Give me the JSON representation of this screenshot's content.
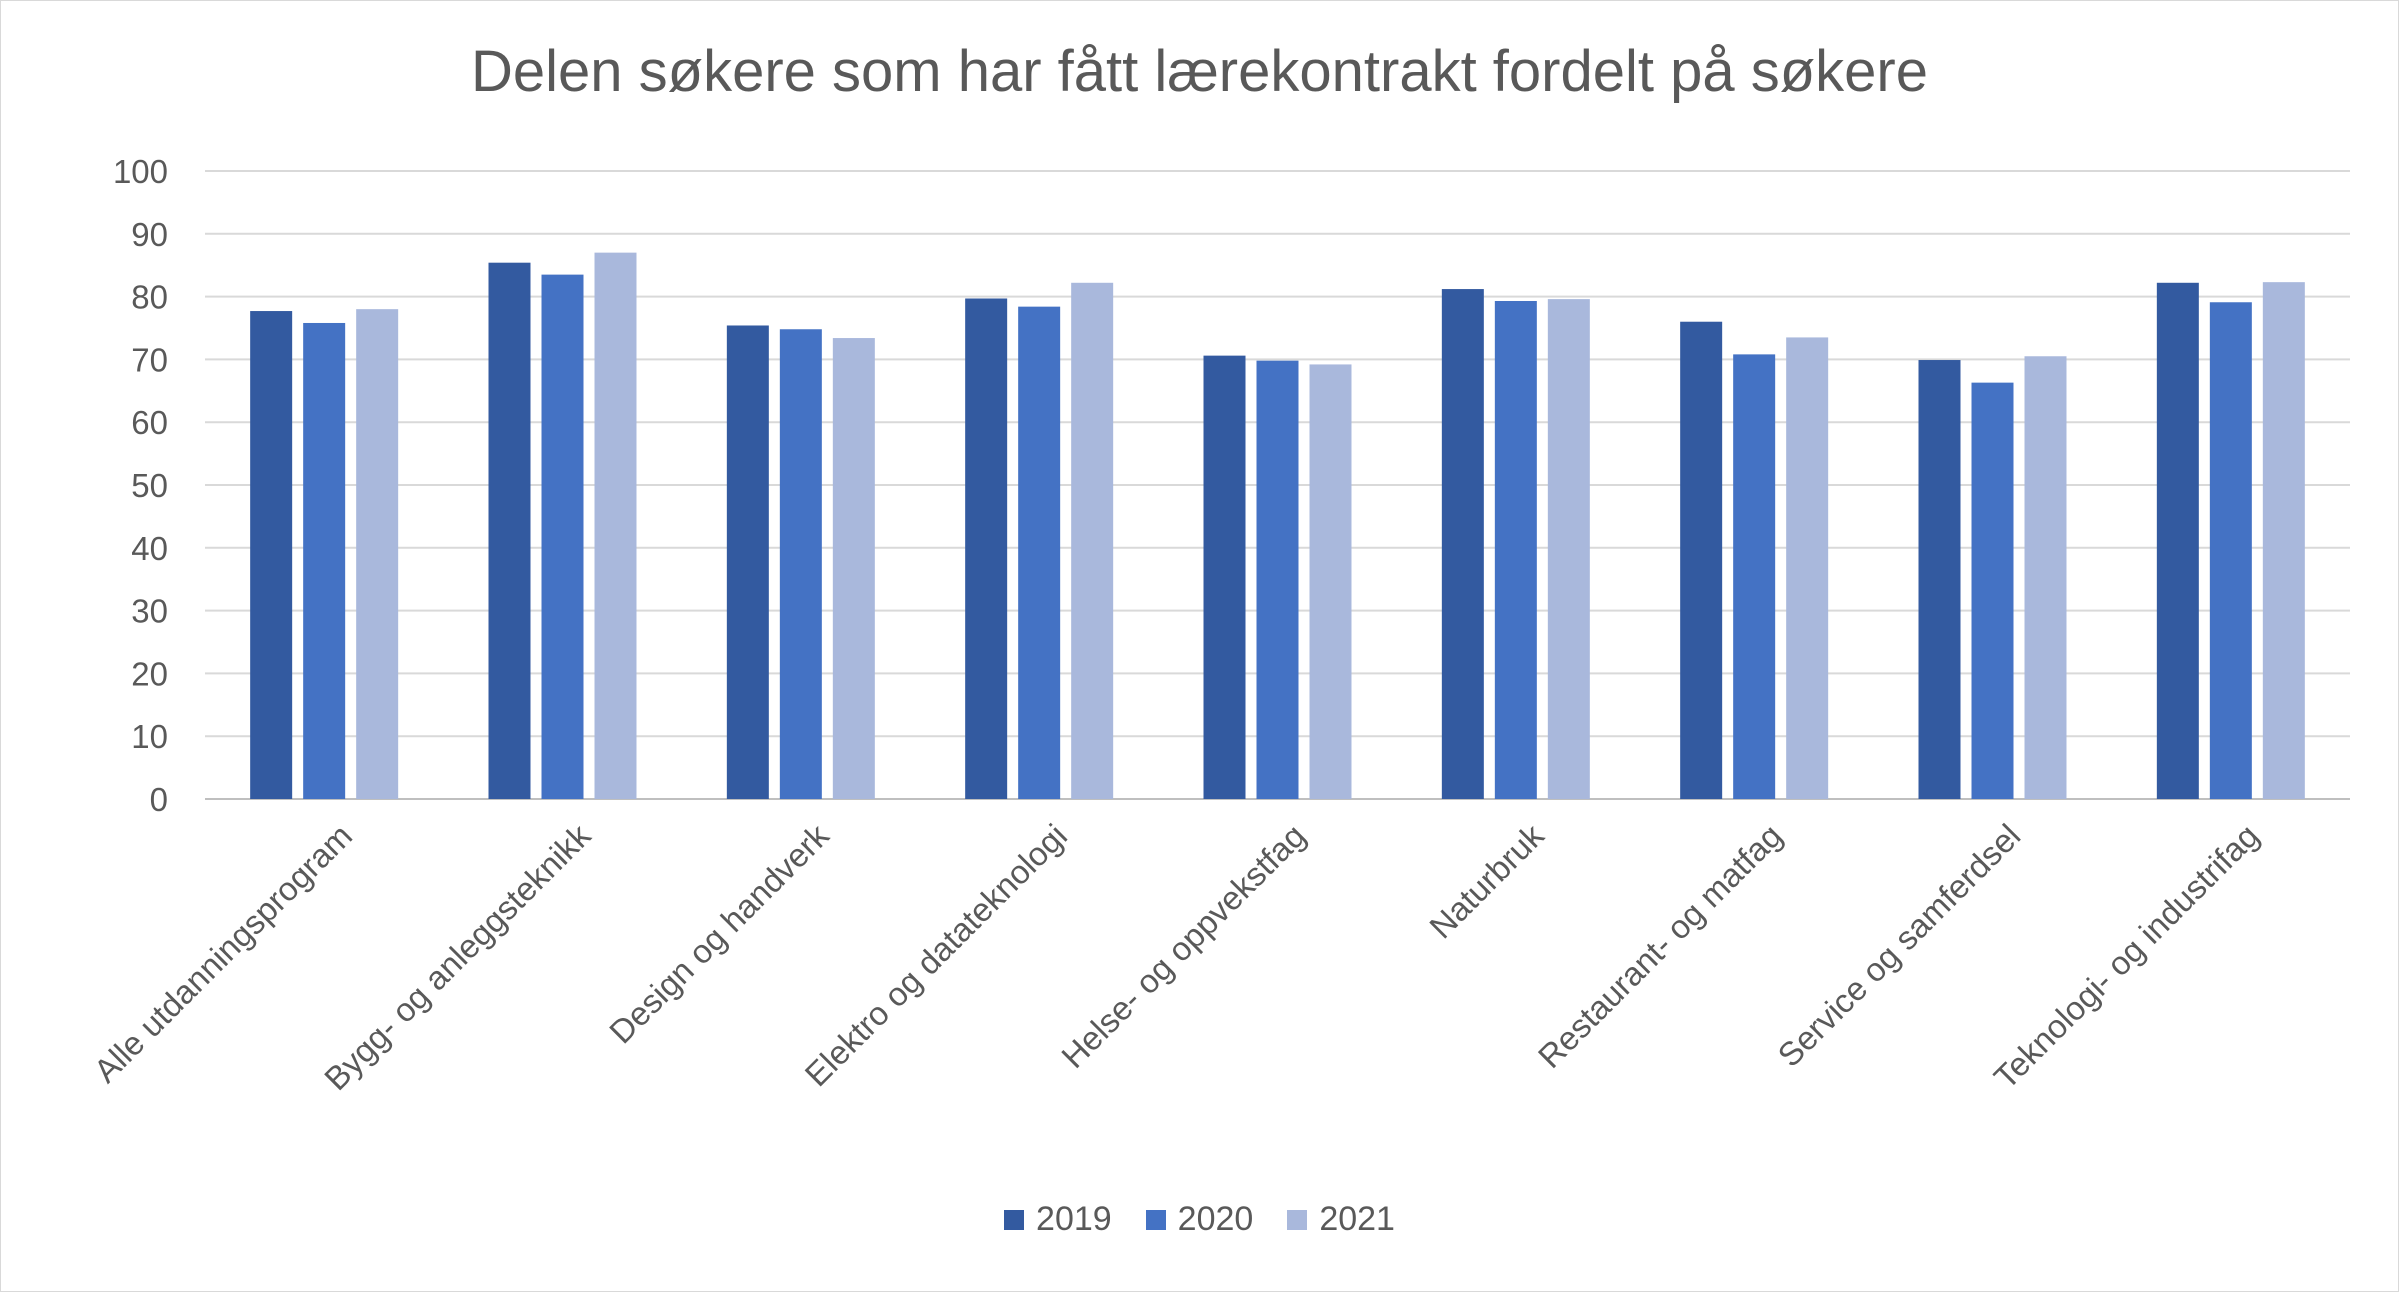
{
  "chart_data": {
    "type": "bar",
    "title": "Delen søkere som har fått lærekontrakt fordelt på søkere",
    "xlabel": "",
    "ylabel": "",
    "ylim": [
      0,
      100
    ],
    "yticks": [
      0,
      10,
      20,
      30,
      40,
      50,
      60,
      70,
      80,
      90,
      100
    ],
    "grid": true,
    "legend_position": "bottom",
    "categories": [
      "Alle utdanningsprogram",
      "Bygg- og anleggsteknikk",
      "Design og handverk",
      "Elektro og datateknologi",
      "Helse- og oppvekstfag",
      "Naturbruk",
      "Restaurant- og matfag",
      "Service og samferdsel",
      "Teknologi- og industrifag"
    ],
    "series": [
      {
        "name": "2019",
        "color": "#335aa0",
        "values": [
          77.7,
          85.4,
          75.4,
          79.7,
          70.6,
          81.2,
          76.0,
          69.9,
          82.2
        ]
      },
      {
        "name": "2020",
        "color": "#4472c4",
        "values": [
          75.8,
          83.5,
          74.8,
          78.4,
          69.8,
          79.3,
          70.8,
          66.3,
          79.1
        ]
      },
      {
        "name": "2021",
        "color": "#a9b8dc",
        "values": [
          78.0,
          87.0,
          73.4,
          82.2,
          69.2,
          79.6,
          73.5,
          70.5,
          82.3
        ]
      }
    ]
  }
}
